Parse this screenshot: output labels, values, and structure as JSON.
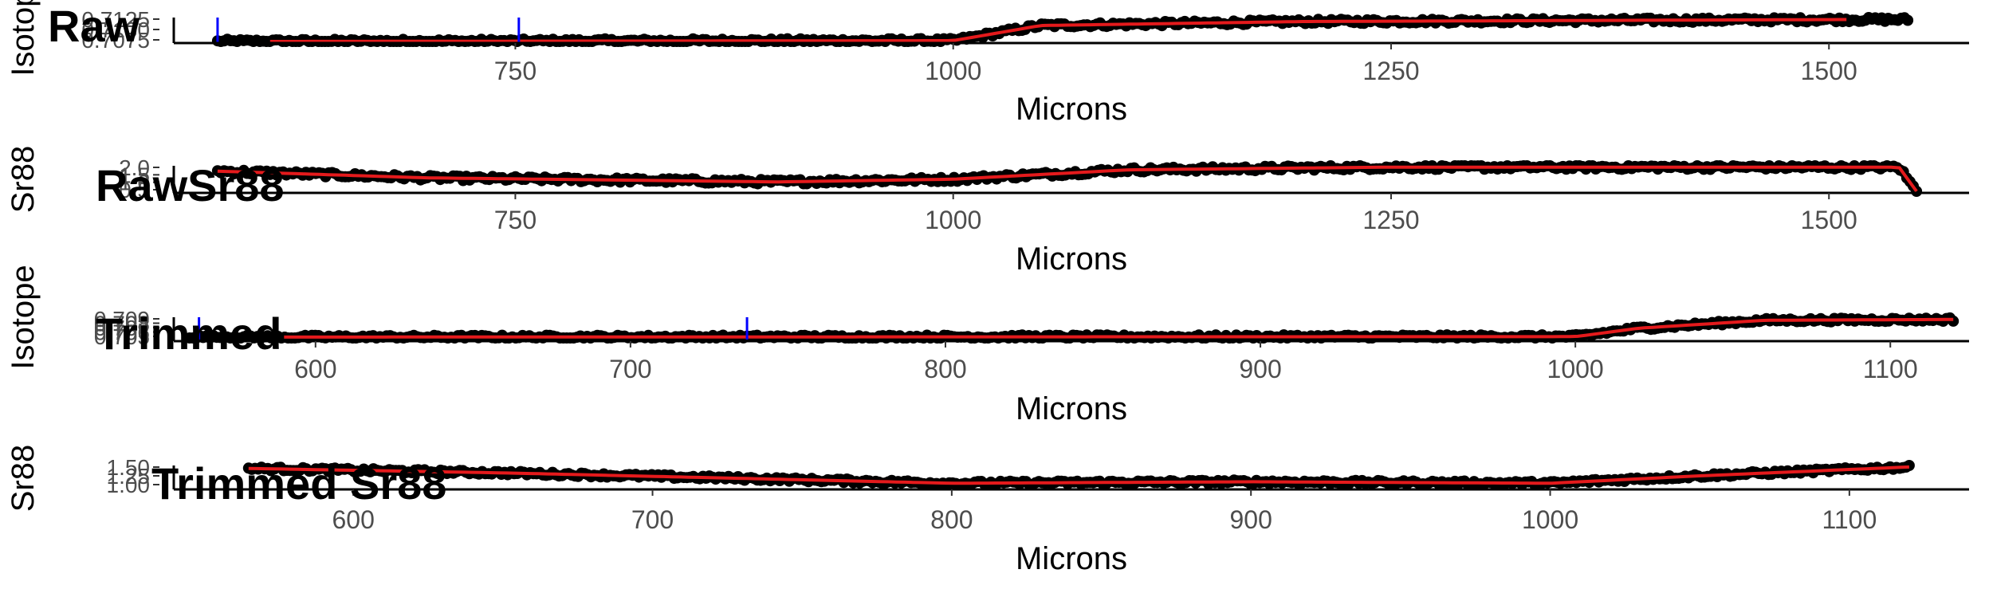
{
  "chart_data": [
    {
      "type": "scatter",
      "title": "Raw",
      "xlabel": "Microns",
      "ylabel": "Isotope",
      "xlim": [
        555,
        1580
      ],
      "xticks": [
        750,
        1000,
        1250,
        1500
      ],
      "yticks": [
        "0.7125",
        "0.7100",
        "0.7075"
      ],
      "ylim": [
        0.707,
        0.713
      ],
      "x_range": [
        580,
        1545
      ],
      "markers": [
        580,
        752
      ],
      "smooth": [
        [
          610,
          0.707
        ],
        [
          1000,
          0.7072
        ],
        [
          1050,
          0.711
        ],
        [
          1200,
          0.712
        ],
        [
          1510,
          0.7125
        ]
      ],
      "grid": false,
      "legend": "none"
    },
    {
      "type": "scatter",
      "title": "RawSr88",
      "xlabel": "Microns",
      "ylabel": "Sr88",
      "xlim": [
        555,
        1580
      ],
      "xticks": [
        750,
        1000,
        1250,
        1500
      ],
      "yticks": [
        "2.0",
        "1.5",
        "1.0",
        "0.5"
      ],
      "ylim": [
        0.3,
        2.2
      ],
      "x_range": [
        580,
        1550
      ],
      "markers": [],
      "smooth": [
        [
          580,
          1.8
        ],
        [
          700,
          1.3
        ],
        [
          900,
          1.0
        ],
        [
          1000,
          1.2
        ],
        [
          1100,
          1.9
        ],
        [
          1250,
          2.1
        ],
        [
          1540,
          2.1
        ],
        [
          1550,
          0.3
        ]
      ],
      "grid": false,
      "legend": "none"
    },
    {
      "type": "scatter",
      "title": "Trimmed",
      "xlabel": "Microns",
      "ylabel": "Isotope",
      "xlim": [
        555,
        1125
      ],
      "xticks": [
        600,
        700,
        800,
        900,
        1000,
        1100
      ],
      "yticks": [
        "0.709",
        "0.708",
        "0.707",
        "0.706",
        "0.705"
      ],
      "ylim": [
        0.7048,
        0.7095
      ],
      "x_range": [
        560,
        1120
      ],
      "markers": [
        563,
        737
      ],
      "smooth": [
        [
          590,
          0.705
        ],
        [
          1000,
          0.7051
        ],
        [
          1020,
          0.707
        ],
        [
          1060,
          0.7088
        ],
        [
          1120,
          0.709
        ]
      ],
      "grid": false,
      "legend": "none"
    },
    {
      "type": "scatter",
      "title": "Trimmed Sr88",
      "xlabel": "Microns",
      "ylabel": "Sr88",
      "xlim": [
        540,
        1140
      ],
      "xticks": [
        600,
        700,
        800,
        900,
        1000,
        1100
      ],
      "yticks": [
        "1.50",
        "1.25",
        "1.00"
      ],
      "ylim": [
        0.9,
        1.6
      ],
      "x_range": [
        565,
        1120
      ],
      "markers": [],
      "smooth": [
        [
          565,
          1.5
        ],
        [
          650,
          1.35
        ],
        [
          800,
          1.0
        ],
        [
          900,
          1.05
        ],
        [
          1000,
          1.0
        ],
        [
          1050,
          1.25
        ],
        [
          1120,
          1.55
        ]
      ],
      "grid": false,
      "legend": "none"
    }
  ]
}
